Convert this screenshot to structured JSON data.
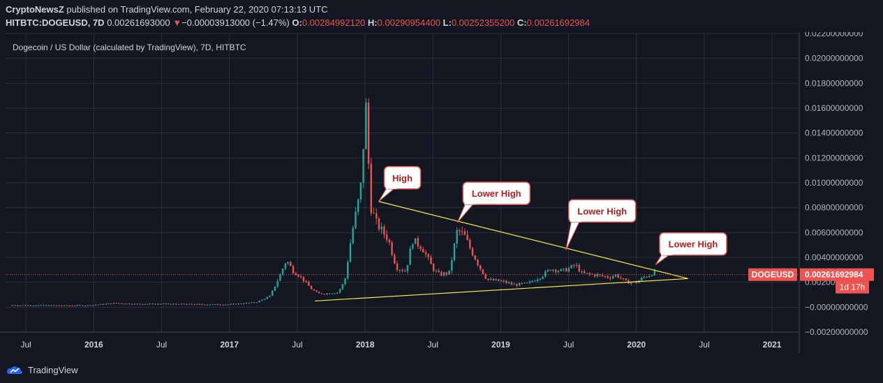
{
  "header": {
    "author": "CryptoNewsZ",
    "published_text": "published on TradingView.com, February 22, 2020 07:13:13 UTC",
    "symbol": "HITBTC:DOGEUSD, 7D",
    "last": "0.00261693000",
    "change_arrow": "▼",
    "change": "−0.00003913000 (−1.47%)",
    "open_label": "O:",
    "open": "0.00284992120",
    "high_label": "H:",
    "high": "0.00290954400",
    "low_label": "L:",
    "low": "0.00252355200",
    "close_label": "C:",
    "close": "0.00261692984"
  },
  "footer": {
    "brand": "TradingView"
  },
  "colors": {
    "up": "#26a69a",
    "down": "#ef5350",
    "trendline": "#ffeb3b",
    "price_line": "#ef5350",
    "background": "#131722",
    "grid": "#2a2e39"
  },
  "chart_data": {
    "type": "candlestick",
    "title": "Dogecoin / US Dollar (calculated by TradingView), 7D, HITBTC",
    "x_ticks": [
      "Jul",
      "2016",
      "Jul",
      "2017",
      "Jul",
      "2018",
      "Jul",
      "2019",
      "Jul",
      "2020",
      "Jul",
      "2021"
    ],
    "y_ticks": [
      "0.02200000000",
      "0.02000000000",
      "0.01800000000",
      "0.01600000000",
      "0.01400000000",
      "0.01200000000",
      "0.01000000000",
      "0.00800000000",
      "0.00600000000",
      "0.00400000000",
      "0.00200000000",
      "−0.00000000000",
      "−0.00200000000"
    ],
    "ylim": [
      -0.002,
      0.022
    ],
    "xlim": [
      2015.35,
      2021.2
    ],
    "last_price_label": "DOGEUSD",
    "last_price": "0.00261692984",
    "last_price_value": 0.00261693,
    "countdown": "1d 17h",
    "series": [
      {
        "t": 2015.4,
        "v": 0.00016
      },
      {
        "t": 2015.6,
        "v": 0.00015
      },
      {
        "t": 2015.8,
        "v": 0.00013
      },
      {
        "t": 2015.95,
        "v": 0.00014
      },
      {
        "t": 2016.07,
        "v": 0.00024
      },
      {
        "t": 2016.15,
        "v": 0.00032
      },
      {
        "t": 2016.3,
        "v": 0.00026
      },
      {
        "t": 2016.5,
        "v": 0.00027
      },
      {
        "t": 2016.7,
        "v": 0.00024
      },
      {
        "t": 2016.85,
        "v": 0.00022
      },
      {
        "t": 2017.0,
        "v": 0.00022
      },
      {
        "t": 2017.2,
        "v": 0.0004
      },
      {
        "t": 2017.3,
        "v": 0.0009
      },
      {
        "t": 2017.37,
        "v": 0.0025
      },
      {
        "t": 2017.42,
        "v": 0.0038
      },
      {
        "t": 2017.47,
        "v": 0.0029
      },
      {
        "t": 2017.52,
        "v": 0.0025
      },
      {
        "t": 2017.6,
        "v": 0.0015
      },
      {
        "t": 2017.65,
        "v": 0.0011
      },
      {
        "t": 2017.72,
        "v": 0.0011
      },
      {
        "t": 2017.8,
        "v": 0.0012
      },
      {
        "t": 2017.85,
        "v": 0.0021
      },
      {
        "t": 2017.9,
        "v": 0.0058
      },
      {
        "t": 2017.95,
        "v": 0.0085
      },
      {
        "t": 2017.98,
        "v": 0.0105
      },
      {
        "t": 2018.0,
        "v": 0.0175
      },
      {
        "t": 2018.04,
        "v": 0.0082
      },
      {
        "t": 2018.08,
        "v": 0.0068
      },
      {
        "t": 2018.12,
        "v": 0.0062
      },
      {
        "t": 2018.17,
        "v": 0.0055
      },
      {
        "t": 2018.23,
        "v": 0.0032
      },
      {
        "t": 2018.3,
        "v": 0.0029
      },
      {
        "t": 2018.35,
        "v": 0.0054
      },
      {
        "t": 2018.42,
        "v": 0.0048
      },
      {
        "t": 2018.5,
        "v": 0.0031
      },
      {
        "t": 2018.55,
        "v": 0.0026
      },
      {
        "t": 2018.62,
        "v": 0.0028
      },
      {
        "t": 2018.68,
        "v": 0.0062
      },
      {
        "t": 2018.73,
        "v": 0.0058
      },
      {
        "t": 2018.78,
        "v": 0.0046
      },
      {
        "t": 2018.85,
        "v": 0.0031
      },
      {
        "t": 2018.9,
        "v": 0.0022
      },
      {
        "t": 2019.0,
        "v": 0.0021
      },
      {
        "t": 2019.1,
        "v": 0.0018
      },
      {
        "t": 2019.2,
        "v": 0.0019
      },
      {
        "t": 2019.3,
        "v": 0.0025
      },
      {
        "t": 2019.37,
        "v": 0.0031
      },
      {
        "t": 2019.45,
        "v": 0.0029
      },
      {
        "t": 2019.5,
        "v": 0.0031
      },
      {
        "t": 2019.55,
        "v": 0.0034
      },
      {
        "t": 2019.6,
        "v": 0.0027
      },
      {
        "t": 2019.7,
        "v": 0.0026
      },
      {
        "t": 2019.8,
        "v": 0.0024
      },
      {
        "t": 2019.85,
        "v": 0.0026
      },
      {
        "t": 2019.93,
        "v": 0.002
      },
      {
        "t": 2020.0,
        "v": 0.002
      },
      {
        "t": 2020.05,
        "v": 0.0024
      },
      {
        "t": 2020.1,
        "v": 0.0026
      },
      {
        "t": 2020.14,
        "v": 0.0029
      },
      {
        "t": 2020.15,
        "v": 0.00262
      }
    ],
    "trendlines": [
      {
        "t1": 2018.1,
        "v1": 0.0085,
        "t2": 2020.38,
        "v2": 0.0023
      },
      {
        "t1": 2017.63,
        "v1": 0.0005,
        "t2": 2020.38,
        "v2": 0.0023
      }
    ],
    "annotations": [
      {
        "label": "High",
        "t": 2018.1,
        "v": 0.0085
      },
      {
        "label": "Lower High",
        "t": 2018.68,
        "v": 0.0068
      },
      {
        "label": "Lower High",
        "t": 2019.48,
        "v": 0.0046
      },
      {
        "label": "Lower High",
        "t": 2020.14,
        "v": 0.0034
      }
    ]
  }
}
